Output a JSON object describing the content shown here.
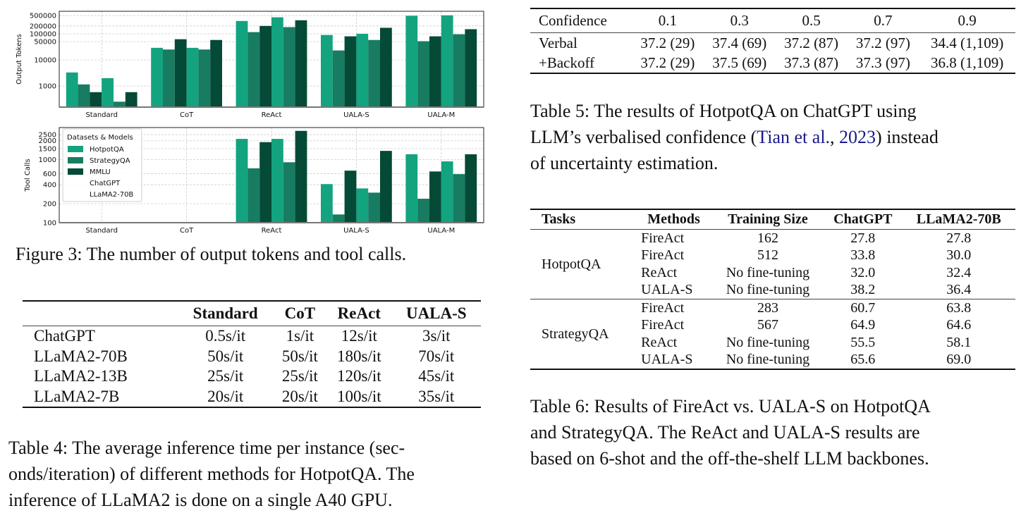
{
  "figure3": {
    "caption": "Figure 3: The number of output tokens and tool calls.",
    "colors": {
      "HotpotQA": "#13a37f",
      "StrategyQA": "#177c61",
      "MMLU": "#044a36"
    },
    "legend_title": "Datasets & Models",
    "legend_items": [
      "HotpotQA",
      "StrategyQA",
      "MMLU",
      "ChatGPT",
      "LLaMA2-70B"
    ]
  },
  "chart_data": [
    {
      "type": "bar",
      "ylabel": "Output Tokens",
      "yscale": "log",
      "ylim": [
        155,
        730000
      ],
      "yticks": [
        1000,
        10000,
        50000,
        100000,
        200000,
        500000
      ],
      "ytick_labels": [
        "1000",
        "10000",
        "50000",
        "100000",
        "200000",
        "500000"
      ],
      "grid": true,
      "categories": [
        "Standard",
        "CoT",
        "ReAct",
        "UALA-S",
        "UALA-M"
      ],
      "series": [
        {
          "dataset": "HotpotQA",
          "model": "ChatGPT",
          "values": [
            3300,
            29000,
            310000,
            90000,
            490000
          ]
        },
        {
          "dataset": "StrategyQA",
          "model": "ChatGPT",
          "values": [
            1150,
            25000,
            116000,
            23000,
            52000
          ]
        },
        {
          "dataset": "MMLU",
          "model": "ChatGPT",
          "values": [
            580,
            62000,
            200000,
            80000,
            80000
          ]
        },
        {
          "dataset": "HotpotQA",
          "model": "LLaMA2-70B",
          "values": [
            2000,
            29000,
            430000,
            100000,
            510000
          ]
        },
        {
          "dataset": "StrategyQA",
          "model": "LLaMA2-70B",
          "values": [
            250,
            25000,
            180000,
            58000,
            96000
          ]
        },
        {
          "dataset": "MMLU",
          "model": "LLaMA2-70B",
          "values": [
            580,
            58000,
            330000,
            170000,
            150000
          ]
        }
      ]
    },
    {
      "type": "bar",
      "ylabel": "Tool Calls",
      "yscale": "log",
      "ylim": [
        100,
        3240
      ],
      "yticks": [
        100,
        200,
        400,
        600,
        1000,
        1500,
        2000,
        2500
      ],
      "ytick_labels": [
        "100",
        "200",
        "400",
        "600",
        "1000",
        "1500",
        "2000",
        "2500"
      ],
      "grid": true,
      "legend": "top-left",
      "categories": [
        "Standard",
        "CoT",
        "ReAct",
        "UALA-S",
        "UALA-M"
      ],
      "series": [
        {
          "dataset": "HotpotQA",
          "model": "ChatGPT",
          "values": [
            null,
            null,
            2140,
            410,
            1220
          ]
        },
        {
          "dataset": "StrategyQA",
          "model": "ChatGPT",
          "values": [
            null,
            null,
            730,
            135,
            240
          ]
        },
        {
          "dataset": "MMLU",
          "model": "ChatGPT",
          "values": [
            null,
            null,
            1900,
            670,
            650
          ]
        },
        {
          "dataset": "HotpotQA",
          "model": "LLaMA2-70B",
          "values": [
            null,
            null,
            2140,
            350,
            940
          ]
        },
        {
          "dataset": "StrategyQA",
          "model": "LLaMA2-70B",
          "values": [
            null,
            null,
            910,
            300,
            590
          ]
        },
        {
          "dataset": "MMLU",
          "model": "LLaMA2-70B",
          "values": [
            null,
            null,
            2870,
            1380,
            1220
          ]
        }
      ]
    }
  ],
  "table4": {
    "headers": [
      "",
      "Standard",
      "CoT",
      "ReAct",
      "UALA-S"
    ],
    "rows": [
      [
        "ChatGPT",
        "0.5s/it",
        "1s/it",
        "12s/it",
        "3s/it"
      ],
      [
        "LLaMA2-70B",
        "50s/it",
        "50s/it",
        "180s/it",
        "70s/it"
      ],
      [
        "LLaMA2-13B",
        "25s/it",
        "25s/it",
        "120s/it",
        "45s/it"
      ],
      [
        "LLaMA2-7B",
        "20s/it",
        "20s/it",
        "100s/it",
        "35s/it"
      ]
    ],
    "caption_lines": [
      "Table 4: The average inference time per instance (sec-",
      "onds/iteration) of different methods for HotpotQA. The",
      "inference of LLaMA2 is done on a single A40 GPU."
    ]
  },
  "table5": {
    "headers": [
      "Confidence",
      "0.1",
      "0.3",
      "0.5",
      "0.7",
      "0.9"
    ],
    "rows": [
      [
        "Verbal",
        "37.2 (29)",
        "37.4 (69)",
        "37.2 (87)",
        "37.2 (97)",
        "34.4 (1,109)"
      ],
      [
        "+Backoff",
        "37.2 (29)",
        "37.5 (69)",
        "37.3 (87)",
        "37.3 (97)",
        "36.8 (1,109)"
      ]
    ],
    "caption_line1": "Table 5: The results of HotpotQA on ChatGPT using",
    "caption_line2_pre": "LLM’s verbalised confidence (",
    "caption_link_author": "Tian et al.",
    "caption_link_sep": ", ",
    "caption_link_year": "2023",
    "caption_line2_post": ") instead",
    "caption_line3": "of uncertainty estimation."
  },
  "table6": {
    "headers": [
      "Tasks",
      "Methods",
      "Training Size",
      "ChatGPT",
      "LLaMA2-70B"
    ],
    "groups": [
      {
        "task": "HotpotQA",
        "rows": [
          [
            "FireAct",
            "162",
            "27.8",
            "27.8"
          ],
          [
            "FireAct",
            "512",
            "33.8",
            "30.0"
          ],
          [
            "ReAct",
            "No fine-tuning",
            "32.0",
            "32.4"
          ],
          [
            "UALA-S",
            "No fine-tuning",
            "38.2",
            "36.4"
          ]
        ]
      },
      {
        "task": "StrategyQA",
        "rows": [
          [
            "FireAct",
            "283",
            "60.7",
            "63.8"
          ],
          [
            "FireAct",
            "567",
            "64.9",
            "64.6"
          ],
          [
            "ReAct",
            "No fine-tuning",
            "55.5",
            "58.1"
          ],
          [
            "UALA-S",
            "No fine-tuning",
            "65.6",
            "69.0"
          ]
        ]
      }
    ],
    "caption_lines": [
      "Table 6: Results of FireAct vs. UALA-S on HotpotQA",
      "and StrategyQA. The ReAct and UALA-S results are",
      "based on 6-shot and the off-the-shelf LLM backbones."
    ]
  }
}
